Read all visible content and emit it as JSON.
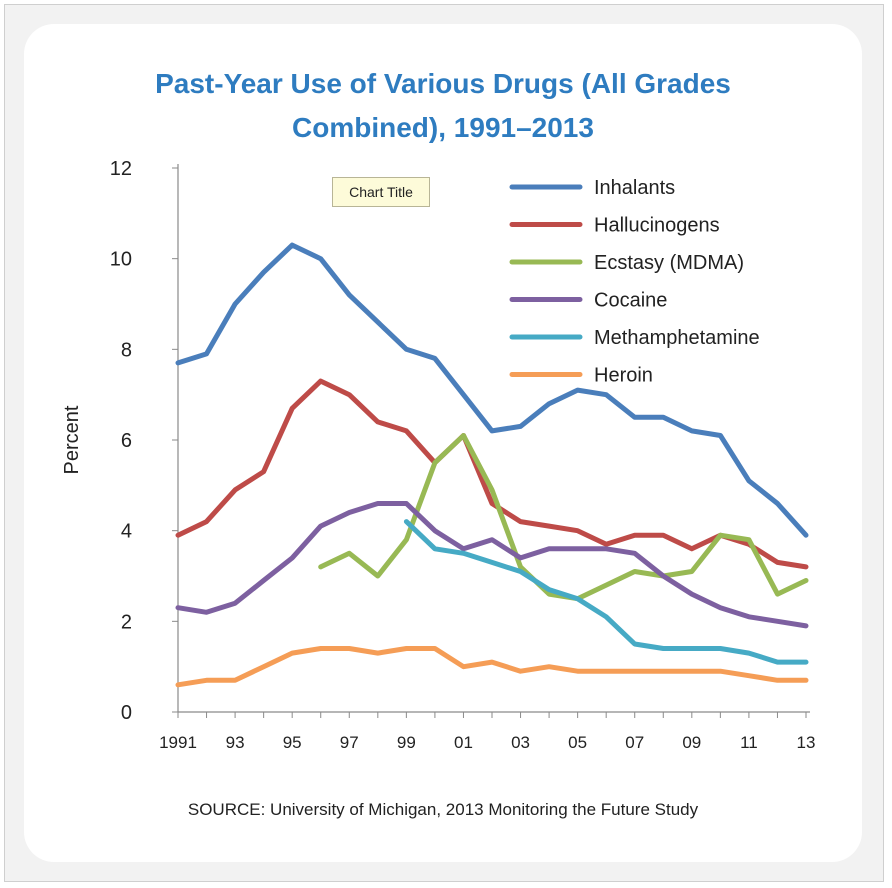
{
  "source_text": "SOURCE: University of Michigan, 2013 Monitoring the Future Study",
  "tooltip_text": "Chart Title",
  "chart_data": {
    "type": "line",
    "title_lines": [
      "Past-Year Use of Various Drugs (All Grades",
      "Combined), 1991–2013"
    ],
    "ylabel": "Percent",
    "xlabel": "",
    "ylim": [
      0,
      12
    ],
    "yticks": [
      0,
      2,
      4,
      6,
      8,
      10,
      12
    ],
    "xlim": [
      1991,
      2013
    ],
    "xtick_labels": [
      "1991",
      "93",
      "95",
      "97",
      "99",
      "01",
      "03",
      "05",
      "07",
      "09",
      "11",
      "13"
    ],
    "x": [
      1991,
      1992,
      1993,
      1994,
      1995,
      1996,
      1997,
      1998,
      1999,
      2000,
      2001,
      2002,
      2003,
      2004,
      2005,
      2006,
      2007,
      2008,
      2009,
      2010,
      2011,
      2012,
      2013
    ],
    "grid": false,
    "legend_position": "top-right",
    "series": [
      {
        "name": "Inhalants",
        "color": "#4a7ebb",
        "values": [
          7.7,
          7.9,
          9.0,
          9.7,
          10.3,
          10.0,
          9.2,
          8.6,
          8.0,
          7.8,
          7.0,
          6.2,
          6.3,
          6.8,
          7.1,
          7.0,
          6.5,
          6.5,
          6.2,
          6.1,
          5.1,
          4.6,
          3.9
        ]
      },
      {
        "name": "Hallucinogens",
        "color": "#be4b48",
        "values": [
          3.9,
          4.2,
          4.9,
          5.3,
          6.7,
          7.3,
          7.0,
          6.4,
          6.2,
          5.5,
          6.1,
          4.6,
          4.2,
          4.1,
          4.0,
          3.7,
          3.9,
          3.9,
          3.6,
          3.9,
          3.7,
          3.3,
          3.2
        ]
      },
      {
        "name": "Ecstasy (MDMA)",
        "color": "#98b954",
        "values": [
          null,
          null,
          null,
          null,
          null,
          3.2,
          3.5,
          3.0,
          3.8,
          5.5,
          6.1,
          4.9,
          3.2,
          2.6,
          2.5,
          2.8,
          3.1,
          3.0,
          3.1,
          3.9,
          3.8,
          2.6,
          2.9
        ]
      },
      {
        "name": "Cocaine",
        "color": "#7d60a0",
        "values": [
          2.3,
          2.2,
          2.4,
          2.9,
          3.4,
          4.1,
          4.4,
          4.6,
          4.6,
          4.0,
          3.6,
          3.8,
          3.4,
          3.6,
          3.6,
          3.6,
          3.5,
          3.0,
          2.6,
          2.3,
          2.1,
          2.0,
          1.9
        ]
      },
      {
        "name": "Methamphetamine",
        "color": "#46aac5",
        "values": [
          null,
          null,
          null,
          null,
          null,
          null,
          null,
          null,
          4.2,
          3.6,
          3.5,
          3.3,
          3.1,
          2.7,
          2.5,
          2.1,
          1.5,
          1.4,
          1.4,
          1.4,
          1.3,
          1.1,
          1.1
        ]
      },
      {
        "name": "Heroin",
        "color": "#f59d56",
        "values": [
          0.6,
          0.7,
          0.7,
          1.0,
          1.3,
          1.4,
          1.4,
          1.3,
          1.4,
          1.4,
          1.0,
          1.1,
          0.9,
          1.0,
          0.9,
          0.9,
          0.9,
          0.9,
          0.9,
          0.9,
          0.8,
          0.7,
          0.7
        ]
      }
    ]
  }
}
